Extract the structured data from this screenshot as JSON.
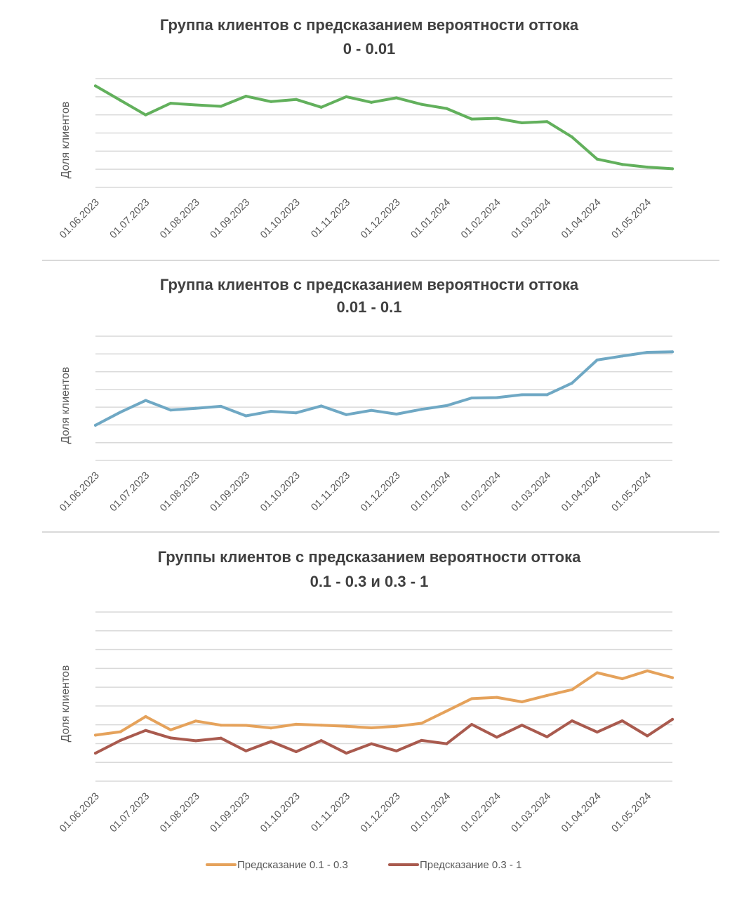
{
  "chart_data": [
    {
      "type": "line",
      "title": "Группа клиентов с предсказанием вероятности оттока",
      "subtitle": "0 - 0.01",
      "ylabel": "Доля клиентов",
      "xlabel": "",
      "tick_labels": [
        "01.06.2023",
        "01.07.2023",
        "01.08.2023",
        "01.09.2023",
        "01.10.2023",
        "01.11.2023",
        "01.12.2023",
        "01.01.2024",
        "01.02.2024",
        "01.03.2024",
        "01.04.2024",
        "01.05.2024"
      ],
      "points_per_tick": 2,
      "grid": true,
      "ylim": [
        0,
        6
      ],
      "series": [
        {
          "color": "#62b05c",
          "values": [
            5.6,
            4.8,
            4.0,
            4.64,
            4.55,
            4.47,
            5.03,
            4.73,
            4.85,
            4.42,
            5.0,
            4.69,
            4.94,
            4.58,
            4.35,
            3.77,
            3.81,
            3.56,
            3.63,
            2.78,
            1.56,
            1.27,
            1.12,
            1.03
          ]
        }
      ]
    },
    {
      "type": "line",
      "title": "Группа клиентов с предсказанием вероятности оттока",
      "subtitle": "0.01 - 0.1",
      "ylabel": "Доля клиентов",
      "xlabel": "",
      "tick_labels": [
        "01.06.2023",
        "01.07.2023",
        "01.08.2023",
        "01.09.2023",
        "01.10.2023",
        "01.11.2023",
        "01.12.2023",
        "01.01.2024",
        "01.02.2024",
        "01.03.2024",
        "01.04.2024",
        "01.05.2024"
      ],
      "points_per_tick": 2,
      "grid": true,
      "ylim": [
        0,
        7
      ],
      "series": [
        {
          "color": "#6fa8c4",
          "values": [
            1.98,
            2.72,
            3.38,
            2.84,
            2.94,
            3.05,
            2.51,
            2.77,
            2.68,
            3.07,
            2.58,
            2.82,
            2.61,
            2.88,
            3.09,
            3.52,
            3.54,
            3.7,
            3.7,
            4.36,
            5.66,
            5.88,
            6.09,
            6.12
          ]
        }
      ]
    },
    {
      "type": "line",
      "title": "Группы клиентов с предсказанием вероятности оттока",
      "subtitle": "0.1 - 0.3 и 0.3 - 1",
      "ylabel": "Доля клиентов",
      "xlabel": "",
      "tick_labels": [
        "01.06.2023",
        "01.07.2023",
        "01.08.2023",
        "01.09.2023",
        "01.10.2023",
        "01.11.2023",
        "01.12.2023",
        "01.01.2024",
        "01.02.2024",
        "01.03.2024",
        "01.04.2024",
        "01.05.2024"
      ],
      "points_per_tick": 2,
      "grid": true,
      "ylim": [
        0,
        9
      ],
      "legend": "bottom",
      "series": [
        {
          "name": "Предсказание 0.1 - 0.3",
          "color": "#e5a25b",
          "values": [
            2.45,
            2.63,
            3.44,
            2.73,
            3.2,
            2.98,
            2.97,
            2.83,
            3.03,
            2.98,
            2.92,
            2.84,
            2.92,
            3.08,
            3.73,
            4.39,
            4.46,
            4.22,
            4.56,
            4.87,
            5.77,
            5.45,
            5.87,
            5.51
          ]
        },
        {
          "name": "Предсказание 0.3 - 1",
          "color": "#a95a4e",
          "values": [
            1.49,
            2.17,
            2.7,
            2.3,
            2.15,
            2.29,
            1.61,
            2.11,
            1.57,
            2.16,
            1.49,
            1.99,
            1.61,
            2.17,
            1.99,
            3.02,
            2.34,
            2.98,
            2.36,
            3.21,
            2.61,
            3.21,
            2.41,
            3.29
          ]
        }
      ]
    }
  ]
}
